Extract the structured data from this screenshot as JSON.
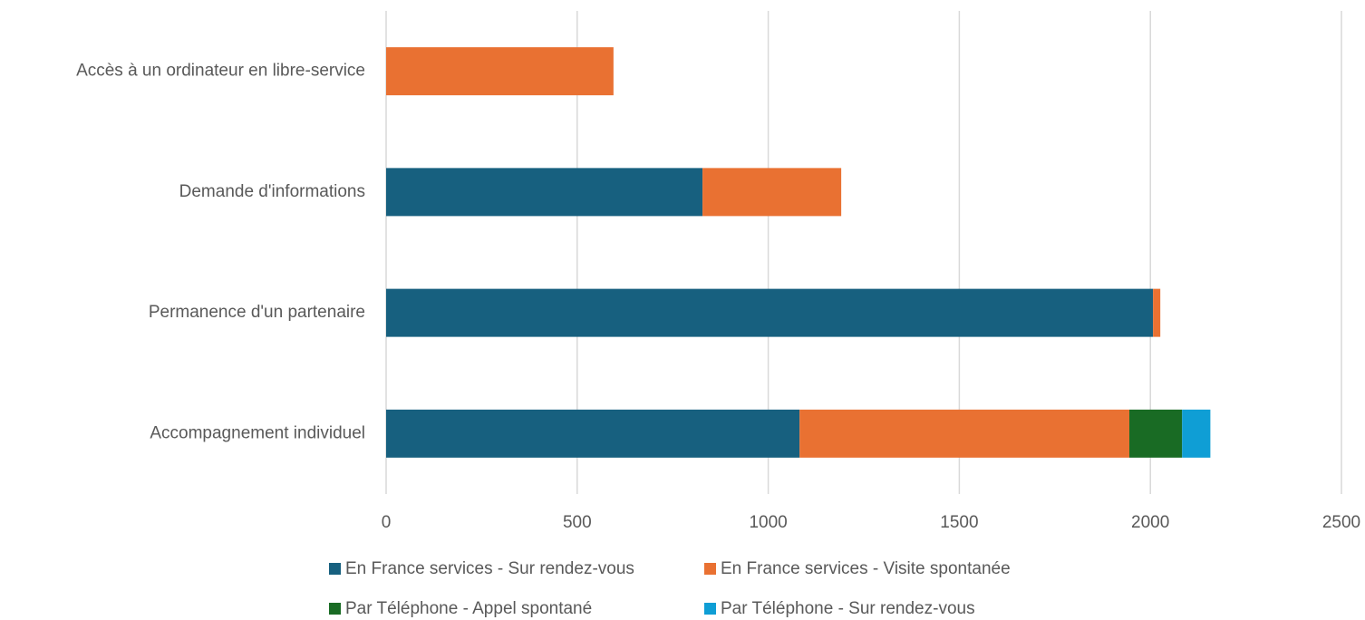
{
  "chart_data": {
    "type": "stacked-barh",
    "categories": [
      "Accès à un ordinateur en libre-service",
      "Demande d'informations",
      "Permanence d'un partenaire",
      "Accompagnement individuel"
    ],
    "series": [
      {
        "name": "En France services - Sur rendez-vous",
        "color": "#17607f",
        "values": [
          0,
          828,
          2007,
          1082
        ]
      },
      {
        "name": "En France services - Visite spontanée",
        "color": "#e97132",
        "values": [
          595,
          363,
          19,
          863
        ]
      },
      {
        "name": "Par Téléphone - Appel spontané",
        "color": "#196b24",
        "values": [
          0,
          0,
          0,
          138
        ]
      },
      {
        "name": "Par Téléphone - Sur rendez-vous",
        "color": "#0f9ed5",
        "values": [
          0,
          0,
          0,
          74
        ]
      }
    ],
    "xlim": [
      0,
      2500
    ],
    "xticks": [
      0,
      500,
      1000,
      1500,
      2000,
      2500
    ],
    "grid": true,
    "legend": "bottom"
  }
}
